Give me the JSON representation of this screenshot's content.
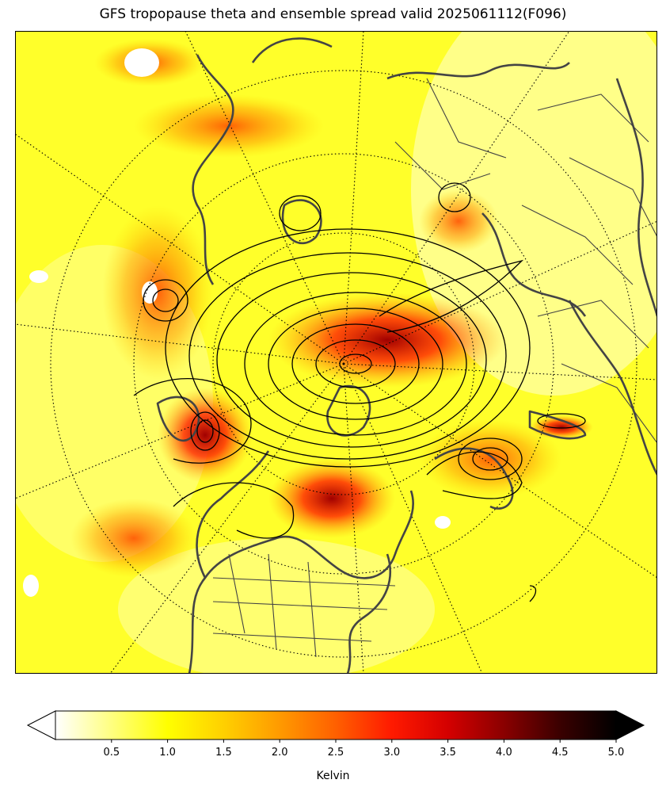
{
  "title": "GFS tropopause theta and ensemble spread valid 2025061112(F096)",
  "map": {
    "projection": "north-polar-stereographic",
    "field": "ensemble spread",
    "contours": "tropopause theta",
    "features": [
      "coastlines",
      "country-borders",
      "us-state-borders",
      "lat-lon-graticule"
    ]
  },
  "colorbar": {
    "label": "Kelvin",
    "colormap": "hot_r",
    "min": 0,
    "max": 5.0,
    "extend": "both",
    "ticks": [
      "0.5",
      "1.0",
      "1.5",
      "2.0",
      "2.5",
      "3.0",
      "3.5",
      "4.0",
      "4.5",
      "5.0"
    ],
    "colors": [
      "#ffffff",
      "#ffff80",
      "#ffff00",
      "#ffd000",
      "#ff9a00",
      "#ff6000",
      "#ff1a00",
      "#d40000",
      "#8a0000",
      "#3a0000",
      "#000000"
    ]
  }
}
